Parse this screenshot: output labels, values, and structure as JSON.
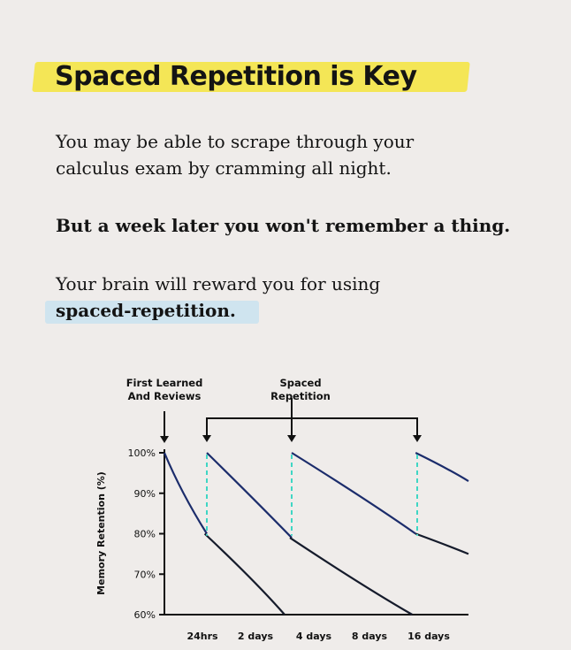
{
  "title": "Spaced Repetition is Key",
  "para1": {
    "line1": "You may be able to scrape through your",
    "line2": "calculus exam by cramming all night."
  },
  "para2": "But a week later you won't remember a thing.",
  "para3": {
    "line1": "Your brain will reward you for using",
    "line2": "spaced-repetition."
  },
  "annotations": {
    "first": [
      "First Learned",
      "And Reviews"
    ],
    "spaced": [
      "Spaced",
      "Repetition"
    ]
  },
  "colors": {
    "title_highlight": "#f3e64e",
    "term_highlight": "#cfe4ef",
    "spaced_curve": "#1b2c6b",
    "forget_curve": "#151b2b",
    "review_marker": "#3fd6c4"
  },
  "chart_data": {
    "type": "line",
    "ylabel": "Memory Retention (%)",
    "y_ticks": [
      "100%",
      "90%",
      "80%",
      "70%",
      "60%"
    ],
    "x_ticks": [
      "24hrs",
      "2 days",
      "4 days",
      "8 days",
      "16 days"
    ],
    "ylim": [
      60,
      100
    ],
    "grid": false,
    "review_points": [
      "24hrs",
      "4 days",
      "16 days"
    ],
    "series": [
      {
        "style": "spaced",
        "points": [
          [
            0,
            100
          ],
          [
            0.4,
            90
          ],
          [
            1,
            80
          ]
        ]
      },
      {
        "style": "forget",
        "points": [
          [
            0.95,
            80
          ],
          [
            2,
            68
          ],
          [
            2.8,
            60
          ]
        ]
      },
      {
        "style": "spaced",
        "points": [
          [
            1,
            100
          ],
          [
            2,
            88
          ],
          [
            3,
            79
          ]
        ]
      },
      {
        "style": "forget",
        "points": [
          [
            2.95,
            79
          ],
          [
            4.3,
            67
          ],
          [
            5.8,
            60
          ]
        ]
      },
      {
        "style": "spaced",
        "points": [
          [
            3,
            100
          ],
          [
            4.5,
            88
          ],
          [
            5.9,
            80
          ]
        ]
      },
      {
        "style": "forget",
        "points": [
          [
            5.9,
            80
          ],
          [
            6.6,
            77
          ],
          [
            7.4,
            75
          ]
        ]
      },
      {
        "style": "spaced",
        "points": [
          [
            5.9,
            100
          ],
          [
            6.6,
            96
          ],
          [
            7.4,
            93
          ]
        ]
      }
    ]
  }
}
